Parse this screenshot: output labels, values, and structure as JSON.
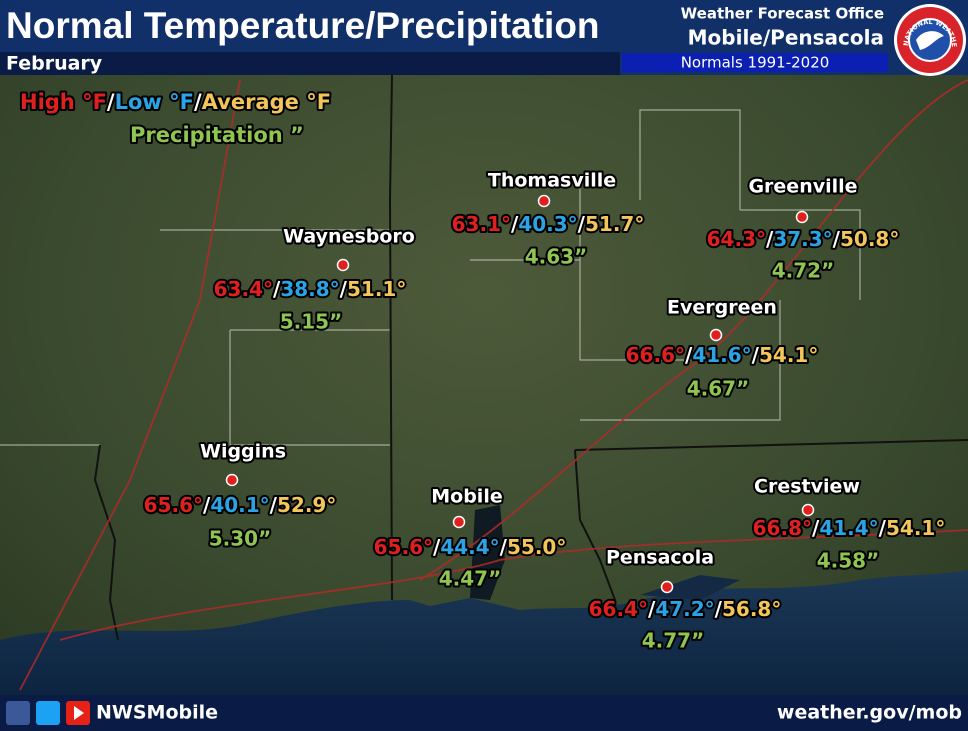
{
  "header": {
    "title": "Normal Temperature/Precipitation",
    "month": "February",
    "office_line1": "Weather Forecast Office",
    "office_line2": "Mobile/Pensacola",
    "normals": "Normals 1991-2020",
    "logo_text": "NATIONAL WEATHER SERVICE"
  },
  "legend": {
    "high": "High °F",
    "low": "Low °F",
    "average": "Average °F",
    "precipitation": "Precipitation ”"
  },
  "separator": "/",
  "stations": [
    {
      "name": "Thomasville",
      "high": "63.1°",
      "low": "40.3°",
      "average": "51.7°",
      "precip": "4.63”"
    },
    {
      "name": "Greenville",
      "high": "64.3°",
      "low": "37.3°",
      "average": "50.8°",
      "precip": "4.72”"
    },
    {
      "name": "Waynesboro",
      "high": "63.4°",
      "low": "38.8°",
      "average": "51.1°",
      "precip": "5.15”"
    },
    {
      "name": "Evergreen",
      "high": "66.6°",
      "low": "41.6°",
      "average": "54.1°",
      "precip": "4.67”"
    },
    {
      "name": "Wiggins",
      "high": "65.6°",
      "low": "40.1°",
      "average": "52.9°",
      "precip": "5.30”"
    },
    {
      "name": "Mobile",
      "high": "65.6°",
      "low": "44.4°",
      "average": "55.0°",
      "precip": "4.47”"
    },
    {
      "name": "Crestview",
      "high": "66.8°",
      "low": "41.4°",
      "average": "54.1°",
      "precip": "4.58”"
    },
    {
      "name": "Pensacola",
      "high": "66.4°",
      "low": "47.2°",
      "average": "56.8°",
      "precip": "4.77”"
    }
  ],
  "footer": {
    "social": "NWSMobile",
    "website": "weather.gov/mob"
  }
}
